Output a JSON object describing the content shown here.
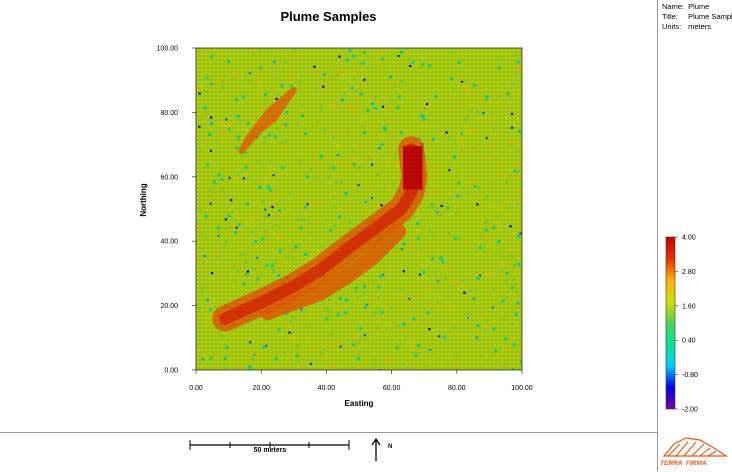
{
  "chart_data": {
    "type": "heatmap",
    "title": "Plume Samples",
    "xlabel": "Easting",
    "ylabel": "Northing",
    "xlim": [
      0,
      100
    ],
    "ylim": [
      0,
      100
    ],
    "xticks": [
      "0.00",
      "20.00",
      "40.00",
      "60.00",
      "80.00",
      "100.00"
    ],
    "yticks": [
      "0.00",
      "20.00",
      "40.00",
      "60.00",
      "80.00",
      "100.00"
    ],
    "colorbar": {
      "min": -2.0,
      "max": 4.0,
      "ticks": [
        "4.00",
        "2.80",
        "1.60",
        "0.40",
        "-0.80",
        "-2.00"
      ],
      "colors": [
        "#7a00a0",
        "#0000e6",
        "#00c8ff",
        "#00e69a",
        "#4fd25a",
        "#cfe000",
        "#ffb000",
        "#e83000",
        "#c80000"
      ]
    },
    "background_value": 1.6,
    "plume": {
      "core": [
        [
          66,
          68.5
        ],
        [
          67,
          60
        ],
        [
          66,
          55
        ],
        [
          63,
          50
        ],
        [
          55,
          44
        ],
        [
          47,
          38
        ],
        [
          38,
          31
        ],
        [
          30,
          26
        ],
        [
          20,
          21
        ],
        [
          9,
          16
        ]
      ],
      "lower_branch": [
        [
          62,
          43
        ],
        [
          54,
          35
        ],
        [
          46,
          29
        ],
        [
          38,
          24
        ],
        [
          30,
          21
        ],
        [
          22,
          18
        ]
      ],
      "upper_lobe": [
        [
          14,
          68
        ],
        [
          19,
          74
        ],
        [
          24,
          78
        ],
        [
          28,
          84
        ],
        [
          30,
          87
        ],
        [
          22,
          80
        ],
        [
          16,
          72
        ]
      ],
      "source_block": {
        "x": [
          63.5,
          69.5
        ],
        "y": [
          56,
          69.5
        ],
        "value": 3.9
      }
    }
  },
  "metadata": {
    "name_label": "Name:",
    "name_value": "Plume",
    "title_label": "Title:",
    "title_value": "Plume Samples",
    "units_label": "Units:",
    "units_value": "meters"
  },
  "scale_bar": {
    "label": "50 meters",
    "north_label": "N"
  },
  "logo": {
    "text1": "TERRA",
    "text2": "FIRMA",
    "accent_color": "#e05a1a"
  }
}
